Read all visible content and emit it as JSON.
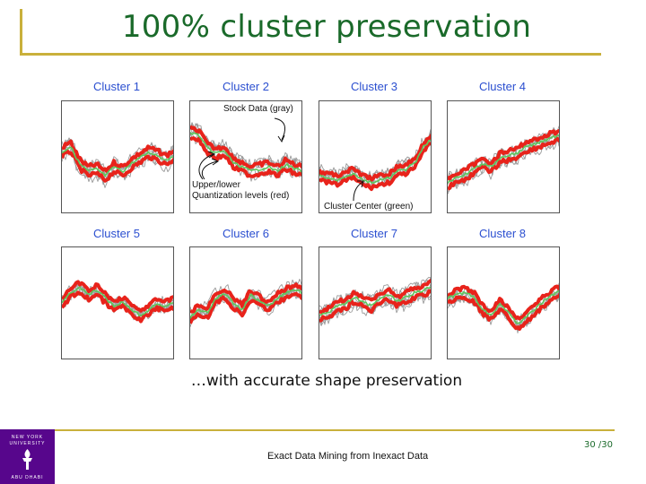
{
  "slide": {
    "title": "100% cluster preservation",
    "subtitle": "…with accurate shape preservation",
    "footer_text": "Exact Data Mining from Inexact Data",
    "page_number": "30 /30",
    "logo": {
      "line1": "NEW YORK",
      "line2": "UNIVERSITY",
      "line3": "ABU DHABI",
      "icon": "torch-icon"
    }
  },
  "figure": {
    "clusters": [
      {
        "label": "Cluster 1"
      },
      {
        "label": "Cluster 2"
      },
      {
        "label": "Cluster 3"
      },
      {
        "label": "Cluster 4"
      },
      {
        "label": "Cluster 5"
      },
      {
        "label": "Cluster 6"
      },
      {
        "label": "Cluster 7"
      },
      {
        "label": "Cluster 8"
      }
    ],
    "annotations": {
      "stock_data": "Stock Data (gray)",
      "quant_line1": "Upper/lower",
      "quant_line2": "Quantization levels (red)",
      "cluster_center": "Cluster Center (green)"
    },
    "colors": {
      "stock": "#9a9a9a",
      "quantization": "#e8231b",
      "center": "#5cc85c",
      "label": "#2b4fd0",
      "accent": "#c9b03b",
      "title": "#1a6a2a"
    }
  }
}
